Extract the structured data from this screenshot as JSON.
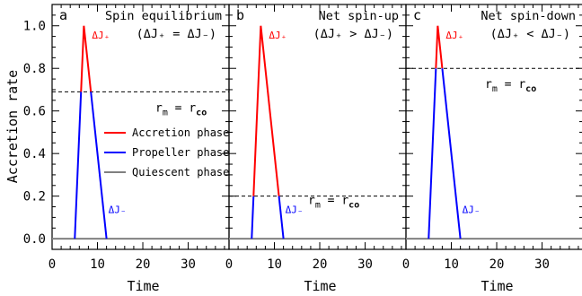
{
  "chart_data": {
    "type": "line",
    "ylabel": "Accretion rate",
    "xlim": [
      0,
      39
    ],
    "ylim": [
      -0.05,
      1.1
    ],
    "xticks": [
      0,
      10,
      20,
      30
    ],
    "yticks": [
      0.0,
      0.2,
      0.4,
      0.6,
      0.8,
      1.0
    ],
    "ytick_labels": [
      "0.0",
      "0.2",
      "0.4",
      "0.6",
      "0.8",
      "1.0"
    ],
    "legend": {
      "placement": "center-right of panel a",
      "entries": [
        {
          "label": "Accretion phase",
          "color": "#ff0000"
        },
        {
          "label": "Propeller phase",
          "color": "#0000ff"
        },
        {
          "label": "Quiescent phase",
          "color": "#808080"
        }
      ]
    },
    "panels": [
      {
        "letter": "a",
        "title": "Spin equilibrium",
        "condition": "(ΔJ₊ = ΔJ₋)",
        "xlabel": "Time",
        "threshold": 0.69,
        "threshold_label_left": "r",
        "threshold_sub_left": "m",
        "threshold_label_mid": " = r",
        "threshold_sub_right": "co",
        "label_near": "high",
        "dj_plus": "ΔJ₊",
        "dj_minus": "ΔJ₋",
        "quiescent": [
          [
            0,
            0
          ],
          [
            5,
            0
          ],
          [
            12,
            0
          ],
          [
            39,
            0
          ]
        ],
        "profile": [
          [
            5,
            0
          ],
          [
            7,
            1.0
          ],
          [
            12,
            0
          ]
        ]
      },
      {
        "letter": "b",
        "title": "Net spin-up",
        "condition": "(ΔJ₊ > ΔJ₋)",
        "xlabel": "Time",
        "threshold": 0.2,
        "threshold_label_left": "r",
        "threshold_sub_left": "m",
        "threshold_label_mid": " = r",
        "threshold_sub_right": "co",
        "label_near": "low",
        "dj_plus": "ΔJ₊",
        "dj_minus": "ΔJ₋",
        "quiescent": [
          [
            0,
            0
          ],
          [
            5,
            0
          ],
          [
            12,
            0
          ],
          [
            39,
            0
          ]
        ],
        "profile": [
          [
            5,
            0
          ],
          [
            7,
            1.0
          ],
          [
            12,
            0
          ]
        ]
      },
      {
        "letter": "c",
        "title": "Net spin-down",
        "condition": "(ΔJ₊ < ΔJ₋)",
        "xlabel": "Time",
        "threshold": 0.8,
        "threshold_label_left": "r",
        "threshold_sub_left": "m",
        "threshold_label_mid": " = r",
        "threshold_sub_right": "co",
        "label_near": "high",
        "dj_plus": "ΔJ₊",
        "dj_minus": "ΔJ₋",
        "quiescent": [
          [
            0,
            0
          ],
          [
            5,
            0
          ],
          [
            12,
            0
          ],
          [
            39,
            0
          ]
        ],
        "profile": [
          [
            5,
            0
          ],
          [
            7,
            1.0
          ],
          [
            12,
            0
          ]
        ]
      }
    ],
    "colors": {
      "accretion": "#ff0000",
      "propeller": "#0000ff",
      "quiescent": "#808080"
    }
  }
}
